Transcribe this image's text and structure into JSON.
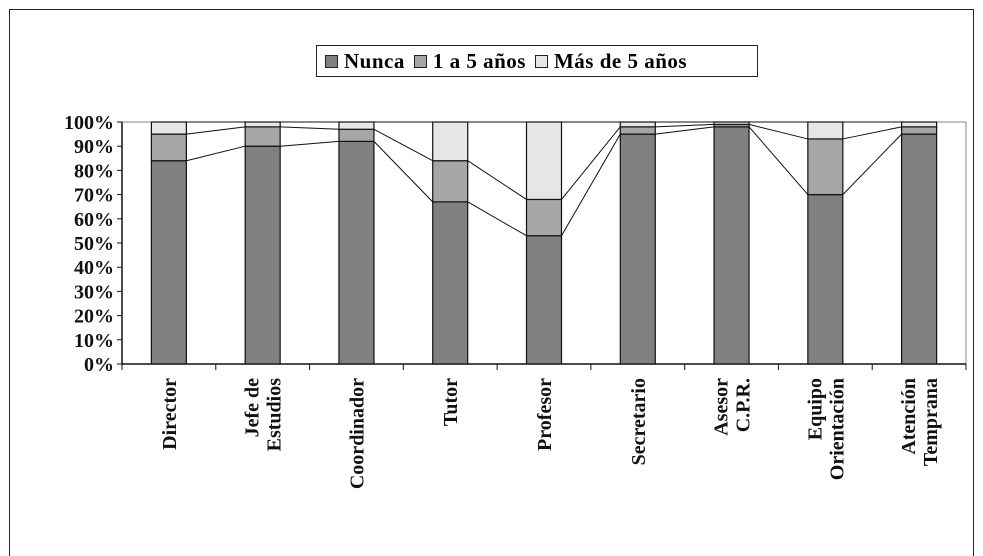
{
  "chart_data": {
    "type": "bar",
    "stacked": true,
    "normalized": true,
    "categories": [
      [
        "Director"
      ],
      [
        "Jefe de",
        "Estudios"
      ],
      [
        "Coordinador"
      ],
      [
        "Tutor"
      ],
      [
        "Profesor"
      ],
      [
        "Secretario"
      ],
      [
        "Asesor",
        "C.P.R."
      ],
      [
        "Equipo",
        "Orientación"
      ],
      [
        "Atención",
        "Temprana"
      ]
    ],
    "series": [
      {
        "name": "Nunca",
        "color": "#808080",
        "values": [
          84,
          90,
          92,
          67,
          53,
          95,
          98,
          70,
          95
        ]
      },
      {
        "name": "1 a 5 años",
        "color": "#a6a6a6",
        "values": [
          11,
          8,
          5,
          17,
          15,
          3,
          1,
          23,
          3
        ]
      },
      {
        "name": "Más de 5 años",
        "color": "#e6e6e6",
        "values": [
          5,
          2,
          3,
          16,
          32,
          2,
          1,
          7,
          2
        ]
      }
    ],
    "ylim": [
      0,
      100
    ],
    "yticks": [
      "0%",
      "10%",
      "20%",
      "30%",
      "40%",
      "50%",
      "60%",
      "70%",
      "80%",
      "90%",
      "100%"
    ],
    "legend_position": "top",
    "series_lines": true,
    "grid": false
  }
}
